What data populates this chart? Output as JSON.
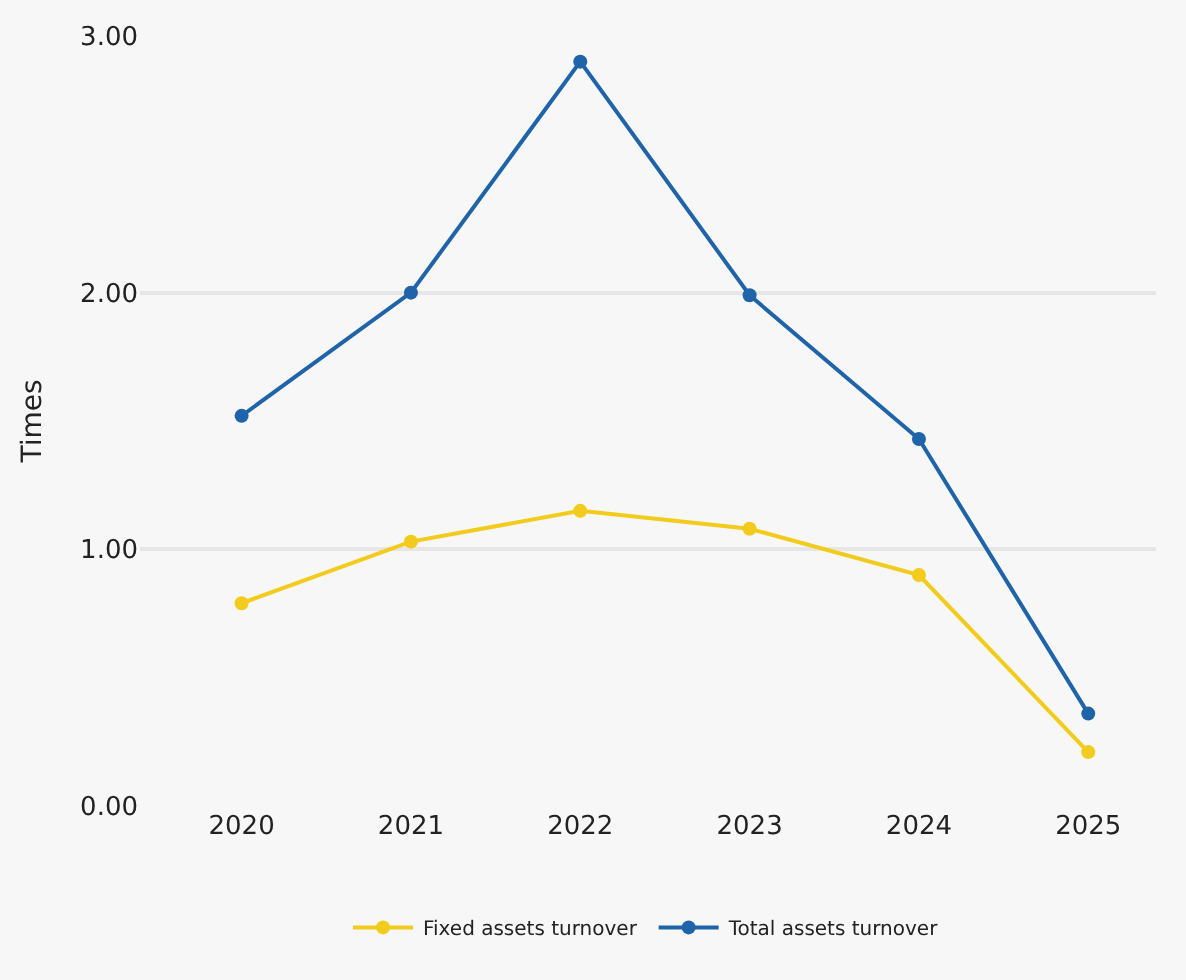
{
  "chart_data": {
    "type": "line",
    "ylabel": "Times",
    "categories": [
      "2020",
      "2021",
      "2022",
      "2023",
      "2024",
      "2025"
    ],
    "series": [
      {
        "name": "Fixed assets turnover",
        "color": "#f2cb1d",
        "values": [
          0.79,
          1.03,
          1.15,
          1.08,
          0.9,
          0.21
        ]
      },
      {
        "name": "Total assets turnover",
        "color": "#1f64a8",
        "values": [
          1.52,
          2.0,
          2.9,
          1.99,
          1.43,
          0.36
        ]
      }
    ],
    "ylim": [
      0,
      3
    ],
    "yticks": [
      {
        "value": 0,
        "label": "0.00"
      },
      {
        "value": 1,
        "label": "1.00"
      },
      {
        "value": 2,
        "label": "2.00"
      },
      {
        "value": 3,
        "label": "3.00"
      }
    ],
    "grid": "y",
    "legend": "bottom",
    "marker": "circle",
    "line_style": "solid"
  }
}
